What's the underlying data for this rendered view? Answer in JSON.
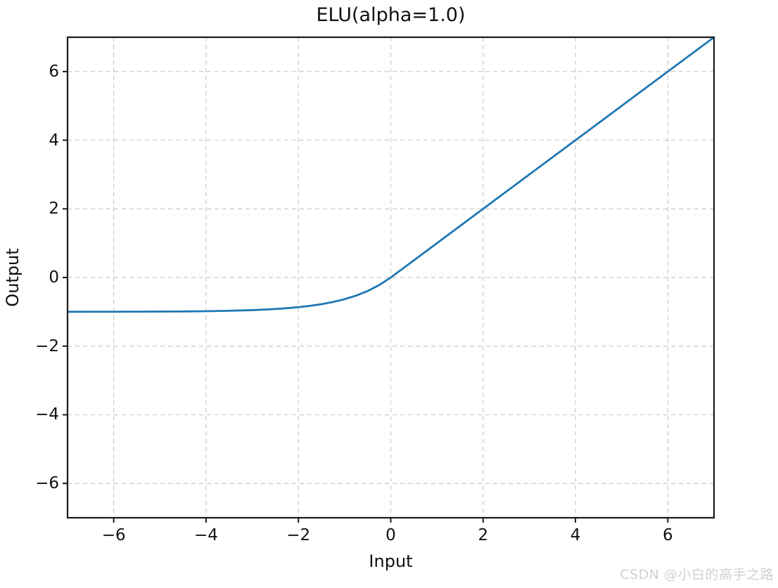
{
  "watermark": "CSDN @小白的高手之路",
  "chart_data": {
    "type": "line",
    "title": "ELU(alpha=1.0)",
    "xlabel": "Input",
    "ylabel": "Output",
    "xlim": [
      -7,
      7
    ],
    "ylim": [
      -7,
      7
    ],
    "grid": {
      "visible": true,
      "style": "dashed",
      "color": "#c9c9c9"
    },
    "legend": "none",
    "axis_color": "#1a1a1a",
    "x_ticks": {
      "values": [
        -6,
        -4,
        -2,
        0,
        2,
        4,
        6
      ],
      "labels": [
        "−6",
        "−4",
        "−2",
        "0",
        "2",
        "4",
        "6"
      ]
    },
    "y_ticks": {
      "values": [
        -6,
        -4,
        -2,
        0,
        2,
        4,
        6
      ],
      "labels": [
        "−6",
        "−4",
        "−2",
        "0",
        "2",
        "4",
        "6"
      ]
    },
    "series": [
      {
        "name": "ELU",
        "color": "#1f77b4",
        "line_width": 2.8,
        "x": [
          -7,
          -6.5,
          -6,
          -5.5,
          -5,
          -4.5,
          -4,
          -3.5,
          -3,
          -2.75,
          -2.5,
          -2.25,
          -2,
          -1.75,
          -1.5,
          -1.25,
          -1,
          -0.75,
          -0.5,
          -0.25,
          0,
          0.5,
          1,
          1.5,
          2,
          3,
          4,
          5,
          6,
          7
        ],
        "y": [
          -0.9991,
          -0.9985,
          -0.9975,
          -0.9959,
          -0.9933,
          -0.9889,
          -0.9817,
          -0.9698,
          -0.9502,
          -0.9361,
          -0.9179,
          -0.8946,
          -0.8647,
          -0.8262,
          -0.7769,
          -0.7135,
          -0.6321,
          -0.5276,
          -0.3935,
          -0.2212,
          0,
          0.5,
          1,
          1.5,
          2,
          3,
          4,
          5,
          6,
          7
        ]
      }
    ]
  }
}
